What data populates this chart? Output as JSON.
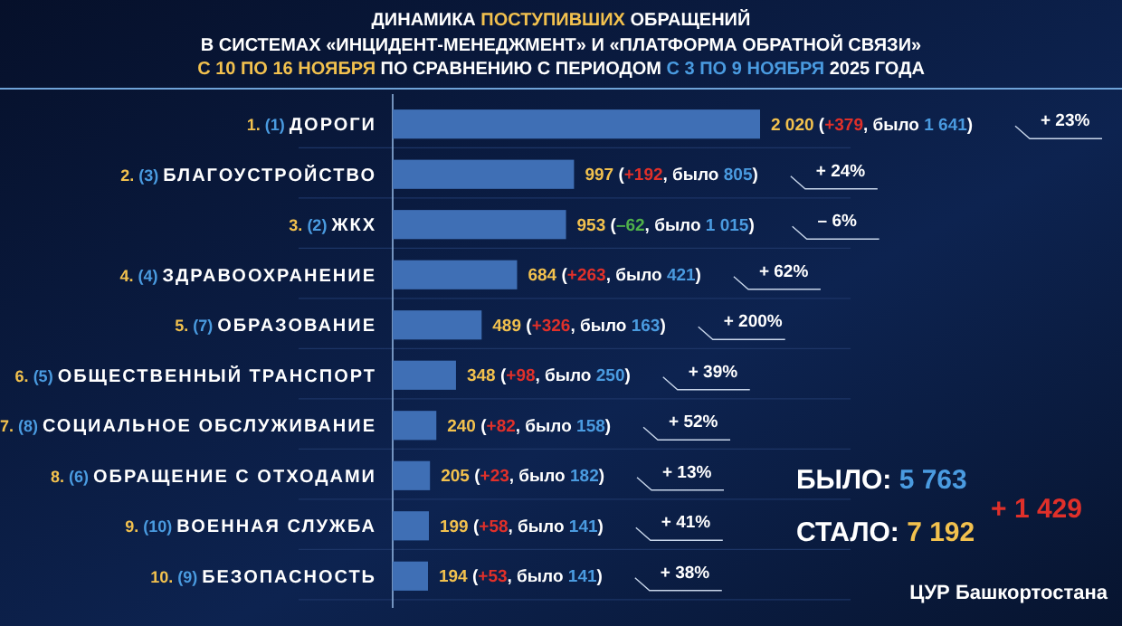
{
  "chart_data": {
    "type": "bar",
    "orientation": "horizontal",
    "title": "ДИНАМИКА ПОСТУПИВШИХ ОБРАЩЕНИЙ",
    "subtitle": "В СИСТЕМАХ «ИНЦИДЕНТ-МЕНЕДЖМЕНТ» И «ПЛАТФОРМА ОБРАТНОЙ СВЯЗИ»\nС 10 ПО 16 НОЯБРЯ ПО СРАВНЕНИЮ С ПЕРИОДОМ С 3 ПО 9 НОЯБРЯ 2025 ГОДА",
    "categories": [
      "1. (1) ДОРОГИ",
      "2. (3) БЛАГОУСТРОЙСТВО",
      "3. (2) ЖКХ",
      "4. (4) ЗДРАВООХРАНЕНИЕ",
      "5. (7) ОБРАЗОВАНИЕ",
      "6. (5) ОБЩЕСТВЕННЫЙ ТРАНСПОРТ",
      "7. (8) СОЦИАЛЬНОЕ ОБСЛУЖИВАНИЕ",
      "8. (6) ОБРАЩЕНИЕ С ОТХОДАМИ",
      "9. (10) ВОЕННАЯ СЛУЖБА",
      "10. (9) БЕЗОПАСНОСТЬ"
    ],
    "values": [
      2020,
      997,
      953,
      684,
      489,
      348,
      240,
      205,
      199,
      194
    ],
    "color": "#3f6fb5",
    "value_labels": [
      "2 020",
      "997",
      "953",
      "684",
      "489",
      "348",
      "240",
      "205",
      "199",
      "194"
    ],
    "annotations": [
      "(+379, было 1 641)",
      "(+192, было 805)",
      "(–62, было 1 015)",
      "(+263, было 421)",
      "(+326, было 163)",
      "(+98, было 250)",
      "(+82, было 158)",
      "(+23, было 182)",
      "(+58, было 141)",
      "(+53, было 141)",
      "+ 23%",
      "+ 24%",
      "– 6%",
      "+ 62%",
      "+ 200%",
      "+ 39%",
      "+ 52%",
      "+ 13%",
      "+ 41%",
      "+ 38%",
      "БЫЛО: 5 763",
      "СТАЛО: 7 192",
      "+ 1 429",
      "ЦУР Башкортостана"
    ]
  }
}
